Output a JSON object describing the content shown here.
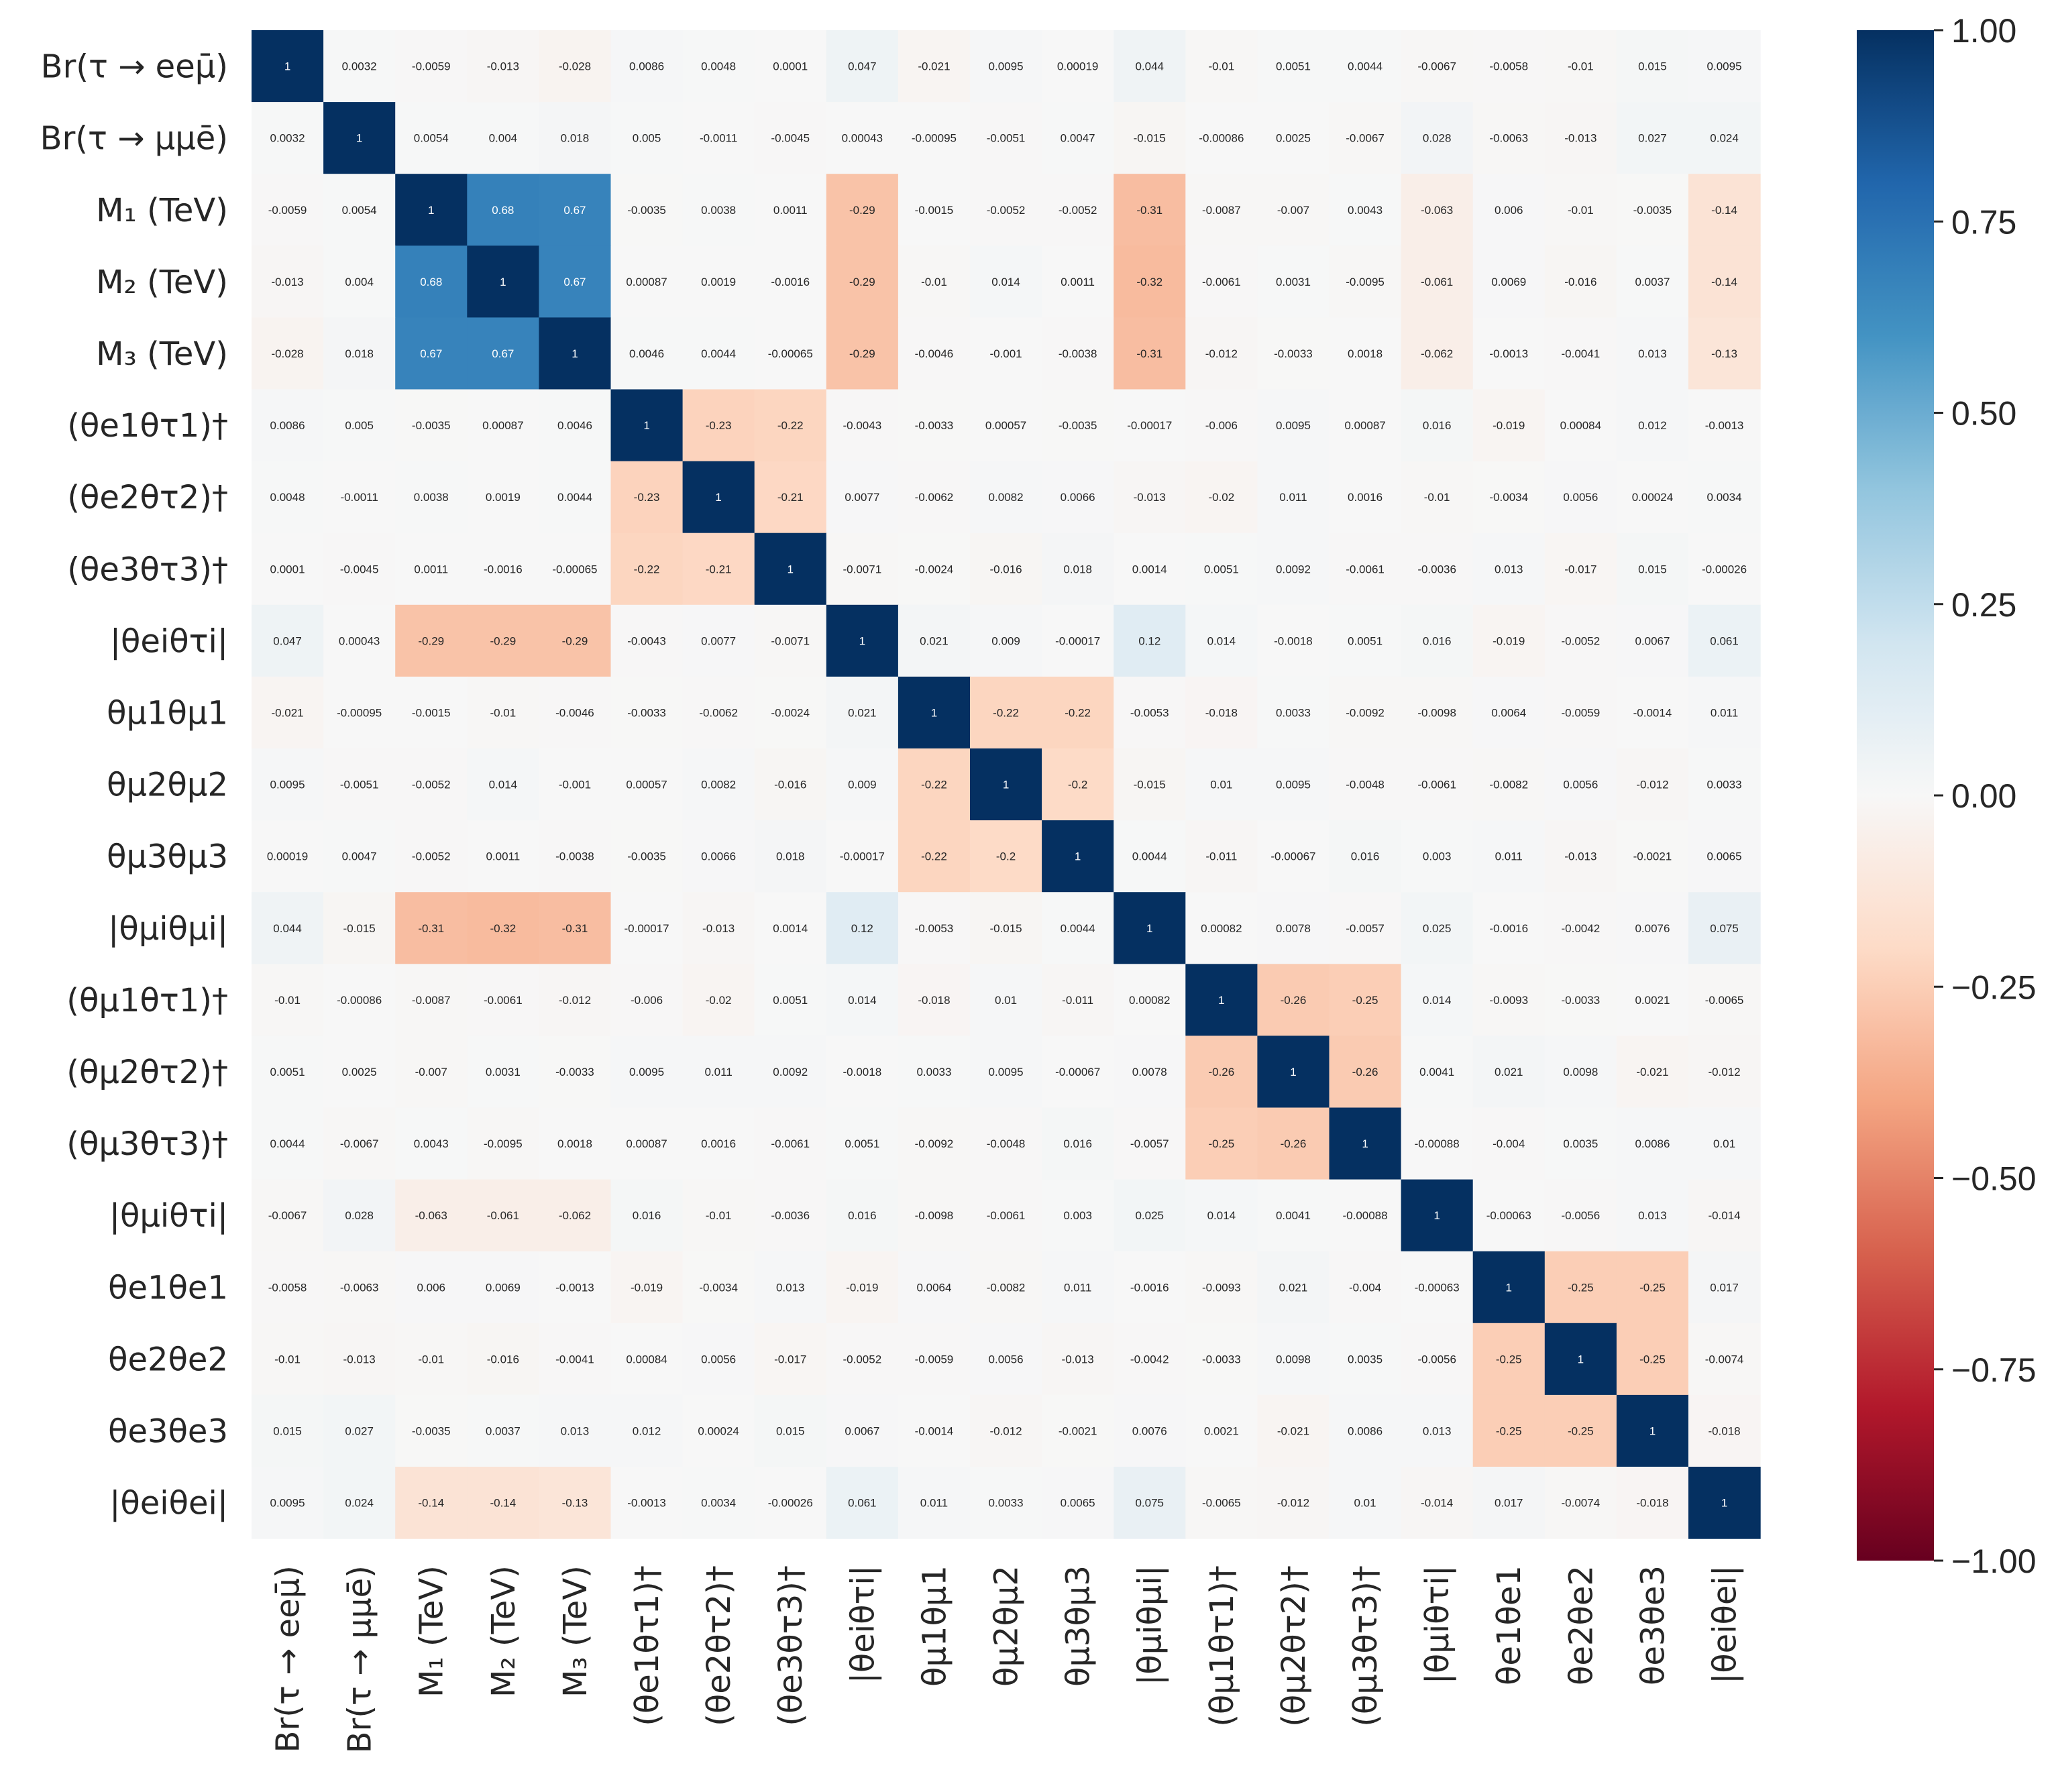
{
  "chart_data": {
    "type": "heatmap",
    "title": "",
    "labels": [
      "Br(τ → eeμ̄)",
      "Br(τ → μμē)",
      "M₁ (TeV)",
      "M₂ (TeV)",
      "M₃ (TeV)",
      "(θe1θτ1)†",
      "(θe2θτ2)†",
      "(θe3θτ3)†",
      "|θeiθτi|",
      "θμ1θμ1",
      "θμ2θμ2",
      "θμ3θμ3",
      "|θμiθμi|",
      "(θμ1θτ1)†",
      "(θμ2θτ2)†",
      "(θμ3θτ3)†",
      "|θμiθτi|",
      "θe1θe1",
      "θe2θe2",
      "θe3θe3",
      "|θeiθei|"
    ],
    "matrix": [
      [
        "1",
        "0.0032",
        "-0.0059",
        "-0.013",
        "-0.028",
        "0.0086",
        "0.0048",
        "0.0001",
        "0.047",
        "-0.021",
        "0.0095",
        "0.00019",
        "0.044",
        "-0.01",
        "0.0051",
        "0.0044",
        "-0.0067",
        "-0.0058",
        "-0.01",
        "0.015",
        "0.0095"
      ],
      [
        "0.0032",
        "1",
        "0.0054",
        "0.004",
        "0.018",
        "0.005",
        "-0.0011",
        "-0.0045",
        "0.00043",
        "-0.00095",
        "-0.0051",
        "0.0047",
        "-0.015",
        "-0.00086",
        "0.0025",
        "-0.0067",
        "0.028",
        "-0.0063",
        "-0.013",
        "0.027",
        "0.024"
      ],
      [
        "-0.0059",
        "0.0054",
        "1",
        "0.68",
        "0.67",
        "-0.0035",
        "0.0038",
        "0.0011",
        "-0.29",
        "-0.0015",
        "-0.0052",
        "-0.0052",
        "-0.31",
        "-0.0087",
        "-0.007",
        "0.0043",
        "-0.063",
        "0.006",
        "-0.01",
        "-0.0035",
        "-0.14"
      ],
      [
        "-0.013",
        "0.004",
        "0.68",
        "1",
        "0.67",
        "0.00087",
        "0.0019",
        "-0.0016",
        "-0.29",
        "-0.01",
        "0.014",
        "0.0011",
        "-0.32",
        "-0.0061",
        "0.0031",
        "-0.0095",
        "-0.061",
        "0.0069",
        "-0.016",
        "0.0037",
        "-0.14"
      ],
      [
        "-0.028",
        "0.018",
        "0.67",
        "0.67",
        "1",
        "0.0046",
        "0.0044",
        "-0.00065",
        "-0.29",
        "-0.0046",
        "-0.001",
        "-0.0038",
        "-0.31",
        "-0.012",
        "-0.0033",
        "0.0018",
        "-0.062",
        "-0.0013",
        "-0.0041",
        "0.013",
        "-0.13"
      ],
      [
        "0.0086",
        "0.005",
        "-0.0035",
        "0.00087",
        "0.0046",
        "1",
        "-0.23",
        "-0.22",
        "-0.0043",
        "-0.0033",
        "0.00057",
        "-0.0035",
        "-0.00017",
        "-0.006",
        "0.0095",
        "0.00087",
        "0.016",
        "-0.019",
        "0.00084",
        "0.012",
        "-0.0013"
      ],
      [
        "0.0048",
        "-0.0011",
        "0.0038",
        "0.0019",
        "0.0044",
        "-0.23",
        "1",
        "-0.21",
        "0.0077",
        "-0.0062",
        "0.0082",
        "0.0066",
        "-0.013",
        "-0.02",
        "0.011",
        "0.0016",
        "-0.01",
        "-0.0034",
        "0.0056",
        "0.00024",
        "0.0034"
      ],
      [
        "0.0001",
        "-0.0045",
        "0.0011",
        "-0.0016",
        "-0.00065",
        "-0.22",
        "-0.21",
        "1",
        "-0.0071",
        "-0.0024",
        "-0.016",
        "0.018",
        "0.0014",
        "0.0051",
        "0.0092",
        "-0.0061",
        "-0.0036",
        "0.013",
        "-0.017",
        "0.015",
        "-0.00026"
      ],
      [
        "0.047",
        "0.00043",
        "-0.29",
        "-0.29",
        "-0.29",
        "-0.0043",
        "0.0077",
        "-0.0071",
        "1",
        "0.021",
        "0.009",
        "-0.00017",
        "0.12",
        "0.014",
        "-0.0018",
        "0.0051",
        "0.016",
        "-0.019",
        "-0.0052",
        "0.0067",
        "0.061"
      ],
      [
        "-0.021",
        "-0.00095",
        "-0.0015",
        "-0.01",
        "-0.0046",
        "-0.0033",
        "-0.0062",
        "-0.0024",
        "0.021",
        "1",
        "-0.22",
        "-0.22",
        "-0.0053",
        "-0.018",
        "0.0033",
        "-0.0092",
        "-0.0098",
        "0.0064",
        "-0.0059",
        "-0.0014",
        "0.011"
      ],
      [
        "0.0095",
        "-0.0051",
        "-0.0052",
        "0.014",
        "-0.001",
        "0.00057",
        "0.0082",
        "-0.016",
        "0.009",
        "-0.22",
        "1",
        "-0.2",
        "-0.015",
        "0.01",
        "0.0095",
        "-0.0048",
        "-0.0061",
        "-0.0082",
        "0.0056",
        "-0.012",
        "0.0033"
      ],
      [
        "0.00019",
        "0.0047",
        "-0.0052",
        "0.0011",
        "-0.0038",
        "-0.0035",
        "0.0066",
        "0.018",
        "-0.00017",
        "-0.22",
        "-0.2",
        "1",
        "0.0044",
        "-0.011",
        "-0.00067",
        "0.016",
        "0.003",
        "0.011",
        "-0.013",
        "-0.0021",
        "0.0065"
      ],
      [
        "0.044",
        "-0.015",
        "-0.31",
        "-0.32",
        "-0.31",
        "-0.00017",
        "-0.013",
        "0.0014",
        "0.12",
        "-0.0053",
        "-0.015",
        "0.0044",
        "1",
        "0.00082",
        "0.0078",
        "-0.0057",
        "0.025",
        "-0.0016",
        "-0.0042",
        "0.0076",
        "0.075"
      ],
      [
        "-0.01",
        "-0.00086",
        "-0.0087",
        "-0.0061",
        "-0.012",
        "-0.006",
        "-0.02",
        "0.0051",
        "0.014",
        "-0.018",
        "0.01",
        "-0.011",
        "0.00082",
        "1",
        "-0.26",
        "-0.25",
        "0.014",
        "-0.0093",
        "-0.0033",
        "0.0021",
        "-0.0065"
      ],
      [
        "0.0051",
        "0.0025",
        "-0.007",
        "0.0031",
        "-0.0033",
        "0.0095",
        "0.011",
        "0.0092",
        "-0.0018",
        "0.0033",
        "0.0095",
        "-0.00067",
        "0.0078",
        "-0.26",
        "1",
        "-0.26",
        "0.0041",
        "0.021",
        "0.0098",
        "-0.021",
        "-0.012"
      ],
      [
        "0.0044",
        "-0.0067",
        "0.0043",
        "-0.0095",
        "0.0018",
        "0.00087",
        "0.0016",
        "-0.0061",
        "0.0051",
        "-0.0092",
        "-0.0048",
        "0.016",
        "-0.0057",
        "-0.25",
        "-0.26",
        "1",
        "-0.00088",
        "-0.004",
        "0.0035",
        "0.0086",
        "0.01"
      ],
      [
        "-0.0067",
        "0.028",
        "-0.063",
        "-0.061",
        "-0.062",
        "0.016",
        "-0.01",
        "-0.0036",
        "0.016",
        "-0.0098",
        "-0.0061",
        "0.003",
        "0.025",
        "0.014",
        "0.0041",
        "-0.00088",
        "1",
        "-0.00063",
        "-0.0056",
        "0.013",
        "-0.014"
      ],
      [
        "-0.0058",
        "-0.0063",
        "0.006",
        "0.0069",
        "-0.0013",
        "-0.019",
        "-0.0034",
        "0.013",
        "-0.019",
        "0.0064",
        "-0.0082",
        "0.011",
        "-0.0016",
        "-0.0093",
        "0.021",
        "-0.004",
        "-0.00063",
        "1",
        "-0.25",
        "-0.25",
        "0.017"
      ],
      [
        "-0.01",
        "-0.013",
        "-0.01",
        "-0.016",
        "-0.0041",
        "0.00084",
        "0.0056",
        "-0.017",
        "-0.0052",
        "-0.0059",
        "0.0056",
        "-0.013",
        "-0.0042",
        "-0.0033",
        "0.0098",
        "0.0035",
        "-0.0056",
        "-0.25",
        "1",
        "-0.25",
        "-0.0074"
      ],
      [
        "0.015",
        "0.027",
        "-0.0035",
        "0.0037",
        "0.013",
        "0.012",
        "0.00024",
        "0.015",
        "0.0067",
        "-0.0014",
        "-0.012",
        "-0.0021",
        "0.0076",
        "0.0021",
        "-0.021",
        "0.0086",
        "0.013",
        "-0.25",
        "-0.25",
        "1",
        "-0.018"
      ],
      [
        "0.0095",
        "0.024",
        "-0.14",
        "-0.14",
        "-0.13",
        "-0.0013",
        "0.0034",
        "-0.00026",
        "0.061",
        "0.011",
        "0.0033",
        "0.0065",
        "0.075",
        "-0.0065",
        "-0.012",
        "0.01",
        "-0.014",
        "0.017",
        "-0.0074",
        "-0.018",
        "1"
      ]
    ],
    "colorbar": {
      "vmin": -1,
      "vmax": 1,
      "colormap": "RdBu",
      "ticks": [
        "1.00",
        "0.75",
        "0.50",
        "0.25",
        "0.00",
        "−0.25",
        "−0.50",
        "−0.75",
        "−1.00"
      ]
    },
    "colors": {
      "positive_max": "#053061",
      "neutral": "#f7f7f7",
      "negative_max": "#67001f"
    }
  }
}
